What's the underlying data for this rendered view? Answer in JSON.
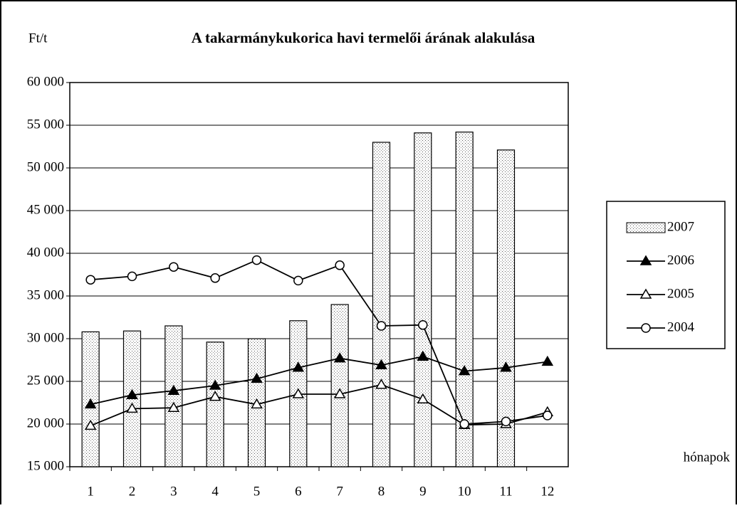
{
  "chart_data": {
    "type": "bar-line",
    "title": "A takarmánykukorica havi termelői árának alakulása",
    "y_label": "Ft/t",
    "x_label": "hónapok",
    "categories": [
      "1",
      "2",
      "3",
      "4",
      "5",
      "6",
      "7",
      "8",
      "9",
      "10",
      "11",
      "12"
    ],
    "ylim": [
      15000,
      60000
    ],
    "yticks": [
      {
        "value": 15000,
        "label": "15 000"
      },
      {
        "value": 20000,
        "label": "20 000"
      },
      {
        "value": 25000,
        "label": "25 000"
      },
      {
        "value": 30000,
        "label": "30 000"
      },
      {
        "value": 35000,
        "label": "35 000"
      },
      {
        "value": 40000,
        "label": "40 000"
      },
      {
        "value": 45000,
        "label": "45 000"
      },
      {
        "value": 50000,
        "label": "50 000"
      },
      {
        "value": 55000,
        "label": "55 000"
      },
      {
        "value": 60000,
        "label": "60 000"
      }
    ],
    "grid": true,
    "legend": "right",
    "series": [
      {
        "name": "2007",
        "kind": "bar",
        "color": "#000000",
        "values": [
          30800,
          30900,
          31500,
          29600,
          30000,
          32100,
          34000,
          53000,
          54100,
          54200,
          52100,
          null
        ]
      },
      {
        "name": "2006",
        "kind": "line",
        "marker": "triangle-filled",
        "color": "#000000",
        "values": [
          22300,
          23400,
          23900,
          24500,
          25300,
          26600,
          27700,
          26900,
          27900,
          26200,
          26600,
          27300
        ]
      },
      {
        "name": "2005",
        "kind": "line",
        "marker": "triangle-open",
        "color": "#000000",
        "values": [
          19800,
          21800,
          21900,
          23200,
          22300,
          23500,
          23500,
          24600,
          22900,
          19900,
          20000,
          21400
        ]
      },
      {
        "name": "2004",
        "kind": "line",
        "marker": "circle-open",
        "color": "#000000",
        "values": [
          36900,
          37300,
          38400,
          37100,
          39200,
          36800,
          38600,
          31500,
          31600,
          20000,
          20300,
          21000
        ]
      }
    ]
  }
}
